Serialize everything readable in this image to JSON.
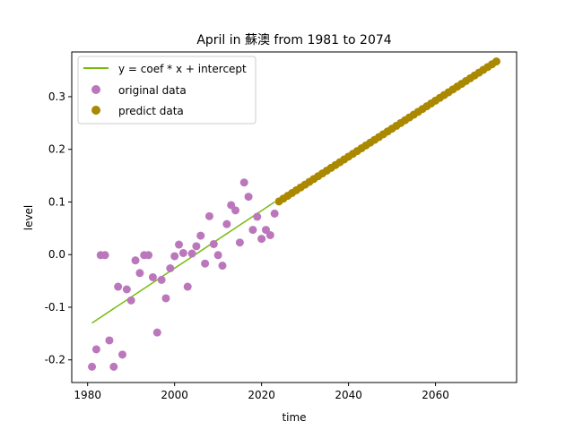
{
  "chart_data": {
    "type": "scatter",
    "title": "April in 蘇澳 from 1981 to 2074",
    "xlabel": "time",
    "ylabel": "level",
    "xlim": [
      1976.35,
      2078.65
    ],
    "ylim": [
      -0.243,
      0.385
    ],
    "xticks": [
      1980,
      2000,
      2020,
      2040,
      2060
    ],
    "yticks": [
      -0.2,
      -0.1,
      0.0,
      0.1,
      0.2,
      0.3
    ],
    "ytick_labels": [
      "-0.2",
      "-0.1",
      "0.0",
      "0.1",
      "0.2",
      "0.3"
    ],
    "grid": false,
    "legend_position": "top-left",
    "colors": {
      "fit": "#77bb11",
      "original": "#bb77bb",
      "predict": "#aa8800"
    },
    "series": [
      {
        "name": "y = coef * x + intercept",
        "kind": "line",
        "x": [
          1981,
          2023
        ],
        "y": [
          -0.13,
          0.1
        ]
      },
      {
        "name": "original data",
        "kind": "scatter",
        "x": [
          1981,
          1982,
          1983,
          1984,
          1985,
          1986,
          1987,
          1988,
          1989,
          1990,
          1991,
          1992,
          1993,
          1994,
          1995,
          1996,
          1997,
          1998,
          1999,
          2000,
          2001,
          2002,
          2003,
          2004,
          2005,
          2006,
          2007,
          2008,
          2009,
          2010,
          2011,
          2012,
          2013,
          2014,
          2015,
          2016,
          2017,
          2018,
          2019,
          2020,
          2021,
          2022,
          2023
        ],
        "y": [
          -0.213,
          -0.18,
          -0.001,
          -0.001,
          -0.163,
          -0.213,
          -0.061,
          -0.19,
          -0.066,
          -0.087,
          -0.011,
          -0.035,
          -0.001,
          -0.001,
          -0.043,
          -0.148,
          -0.048,
          -0.083,
          -0.026,
          -0.003,
          0.019,
          0.003,
          -0.061,
          0.002,
          0.016,
          0.036,
          -0.017,
          0.073,
          0.02,
          -0.001,
          -0.021,
          0.058,
          0.094,
          0.084,
          0.023,
          0.137,
          0.11,
          0.047,
          0.072,
          0.03,
          0.047,
          0.037,
          0.078
        ]
      },
      {
        "name": "predict data",
        "kind": "scatter",
        "x_start": 2024,
        "x_end": 2074,
        "y_start": 0.101,
        "y_end": 0.367
      }
    ]
  }
}
